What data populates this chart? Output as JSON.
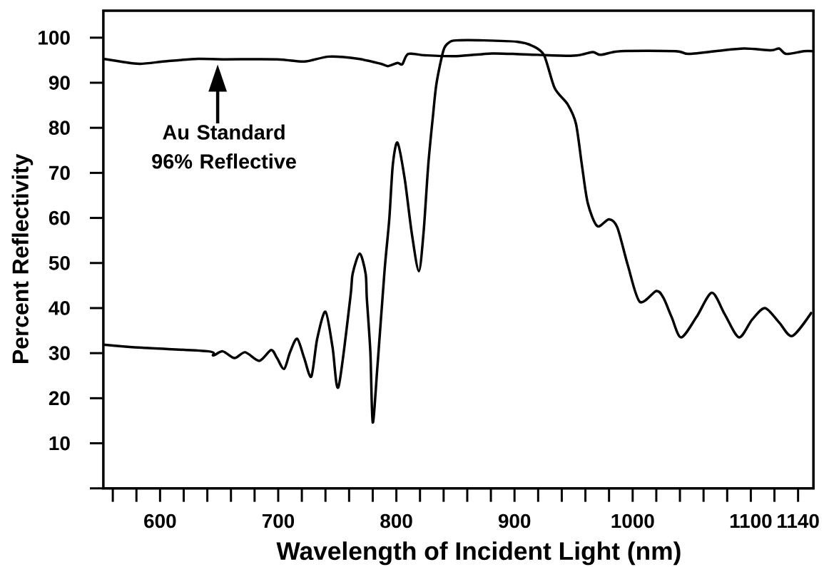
{
  "chart_data": {
    "type": "line",
    "xlabel": "Wavelength of Incident Light (nm)",
    "ylabel": "Percent Reflectivity",
    "xlim": [
      552,
      1153
    ],
    "ylim": [
      0,
      106
    ],
    "xticks": [
      600,
      700,
      800,
      900,
      1000,
      1100,
      1140
    ],
    "yticks": [
      {
        "value": 0,
        "label": null
      },
      10,
      20,
      30,
      40,
      50,
      60,
      70,
      80,
      90,
      100
    ],
    "grid": false,
    "marker": "none",
    "line_style": "solid",
    "series": [
      {
        "color": "#000000",
        "x": [
          552,
          569,
          583,
          606,
          632,
          653,
          699,
          722,
          743,
          768,
          787,
          793,
          801,
          805,
          810,
          824,
          851,
          881,
          908,
          950,
          966,
          973,
          990,
          1036,
          1047,
          1070,
          1094,
          1117,
          1124,
          1130,
          1145,
          1153
        ],
        "values": [
          95.3,
          94.6,
          94.2,
          94.8,
          95.3,
          95.2,
          95.2,
          94.7,
          95.8,
          95.3,
          94.2,
          93.7,
          94.4,
          94.1,
          96.4,
          96.1,
          95.9,
          96.5,
          96.3,
          96.0,
          96.8,
          96.2,
          97.0,
          97.0,
          96.4,
          97.0,
          97.6,
          97.2,
          97.6,
          96.4,
          97.0,
          97.0
        ]
      },
      {
        "color": "#000000",
        "x": [
          552,
          585,
          641,
          645,
          653,
          663,
          672,
          684,
          694,
          699,
          705,
          710,
          716,
          722,
          728,
          733,
          740,
          746,
          751,
          761,
          763,
          769,
          774,
          775,
          778,
          780,
          784,
          790,
          794,
          797,
          801,
          807,
          813,
          819,
          823,
          827,
          831,
          834,
          840,
          845,
          851,
          874,
          902,
          915,
          925,
          934,
          945,
          952,
          957,
          962,
          970,
          980,
          987,
          996,
          1006,
          1020,
          1026,
          1033,
          1041,
          1054,
          1067,
          1078,
          1090,
          1101,
          1112,
          1124,
          1135,
          1151
        ],
        "values": [
          31.9,
          31.2,
          30.4,
          29.5,
          30.4,
          28.9,
          30.2,
          28.3,
          30.7,
          28.9,
          26.5,
          30.2,
          33.2,
          28.9,
          24.8,
          33.2,
          39.2,
          31.3,
          22.5,
          42.2,
          47.6,
          52.1,
          47.6,
          42.2,
          30.2,
          14.6,
          27.1,
          48.3,
          59.7,
          71.8,
          76.7,
          68.8,
          56.7,
          48.2,
          56.7,
          71.8,
          82.7,
          89.9,
          97.3,
          99.0,
          99.4,
          99.4,
          99.1,
          98.2,
          96.1,
          88.8,
          85.2,
          80.9,
          71.8,
          63.3,
          58.2,
          59.7,
          57.9,
          49.4,
          41.4,
          43.8,
          42.3,
          38.0,
          33.5,
          38.0,
          43.4,
          38.6,
          33.5,
          37.4,
          40.0,
          36.8,
          33.8,
          38.9
        ]
      }
    ],
    "annotations": [
      "Au Standard 96% Reflective"
    ]
  }
}
